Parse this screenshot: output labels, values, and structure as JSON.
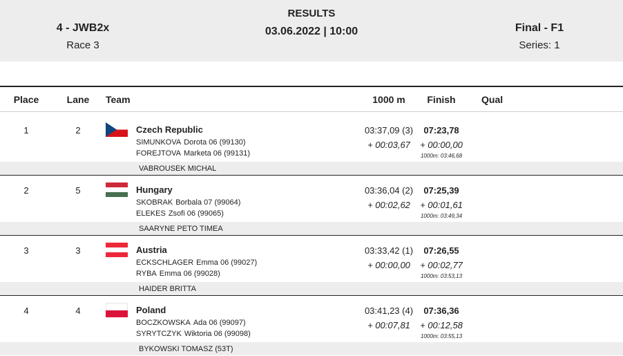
{
  "header": {
    "event": "4 - JWB2x",
    "race": "Race 3",
    "results": "RESULTS",
    "datetime": "03.06.2022 | 10:00",
    "final": "Final - F1",
    "series": "Series: 1"
  },
  "columns": {
    "place": "Place",
    "lane": "Lane",
    "team": "Team",
    "split": "1000 m",
    "finish": "Finish",
    "qual": "Qual"
  },
  "rows": [
    {
      "place": "1",
      "lane": "2",
      "country": "Czech Republic",
      "flag": "czech-republic",
      "rowers": [
        {
          "surname": "SIMUNKOVA",
          "name": "Dorota 06 (99130)"
        },
        {
          "surname": "FOREJTOVA",
          "name": "Marketa 06 (99131)"
        }
      ],
      "split_time": "03:37,09 (3)",
      "split_diff": "+ 00:03,67",
      "finish_time": "07:23,78",
      "finish_diff": "+ 00:00,00",
      "finish_sub": "1000m: 03:46,68",
      "coach": "VABROUSEK MICHAL"
    },
    {
      "place": "2",
      "lane": "5",
      "country": "Hungary",
      "flag": "hungary",
      "rowers": [
        {
          "surname": "SKOBRAK",
          "name": "Borbala 07 (99064)"
        },
        {
          "surname": "ELEKES",
          "name": "Zsofi 06 (99065)"
        }
      ],
      "split_time": "03:36,04 (2)",
      "split_diff": "+ 00:02,62",
      "finish_time": "07:25,39",
      "finish_diff": "+ 00:01,61",
      "finish_sub": "1000m: 03:49,34",
      "coach": "SAARYNE PETO TIMEA"
    },
    {
      "place": "3",
      "lane": "3",
      "country": "Austria",
      "flag": "austria",
      "rowers": [
        {
          "surname": "ECKSCHLAGER",
          "name": "Emma 06 (99027)"
        },
        {
          "surname": "RYBA",
          "name": "Emma 06 (99028)"
        }
      ],
      "split_time": "03:33,42 (1)",
      "split_diff": "+ 00:00,00",
      "finish_time": "07:26,55",
      "finish_diff": "+ 00:02,77",
      "finish_sub": "1000m: 03:53,13",
      "coach": "HAIDER BRITTA"
    },
    {
      "place": "4",
      "lane": "4",
      "country": "Poland",
      "flag": "poland",
      "rowers": [
        {
          "surname": "BOCZKOWSKA",
          "name": "Ada 06 (99097)"
        },
        {
          "surname": "SYRYTCZYK",
          "name": "Wiktoria 06 (99098)"
        }
      ],
      "split_time": "03:41,23 (4)",
      "split_diff": "+ 00:07,81",
      "finish_time": "07:36,36",
      "finish_diff": "+ 00:12,58",
      "finish_sub": "1000m: 03:55,13",
      "coach": "BYKOWSKI TOMASZ (53T)"
    }
  ]
}
